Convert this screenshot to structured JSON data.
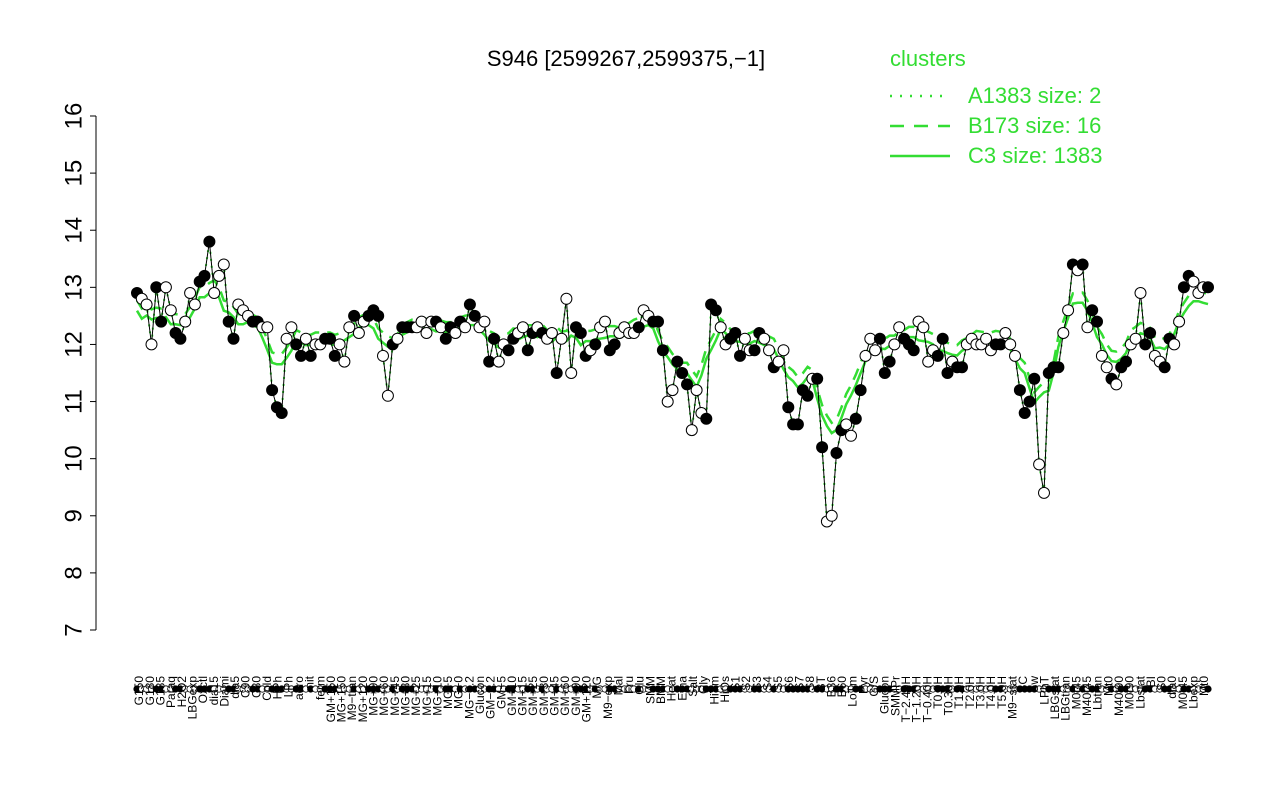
{
  "chart_data": {
    "type": "line",
    "title": "S946 [2599267,2599375,−1]",
    "ylim": [
      7,
      16
    ],
    "yticks": [
      7,
      8,
      9,
      10,
      11,
      12,
      13,
      14,
      15,
      16
    ],
    "xlabel": "",
    "ylabel": "",
    "legend": {
      "title": "clusters",
      "placement": "top-right",
      "color": "#33dd33",
      "entries": [
        {
          "label": "A1383 size: 2",
          "style": "dotted"
        },
        {
          "label": "B173 size: 16",
          "style": "dashed"
        },
        {
          "label": "C3 size: 1383",
          "style": "solid"
        }
      ]
    },
    "x_labels": [
      "G150",
      "G180",
      "G135",
      "Paraq",
      "H2O2",
      "LBGexp",
      "Oxctl",
      "dia15",
      "Diami",
      "dia5",
      "C90",
      "C30",
      "Cold",
      "HPh",
      "LPh",
      "aero",
      "nit",
      "ferm",
      "GM+150",
      "MG+150",
      "M9−tran",
      "MG+120",
      "MG+90",
      "MG+60",
      "MG+45",
      "MG+30",
      "MG+25",
      "MG+15",
      "MG+10",
      "MG+5",
      "MG+0",
      "MG−0.2",
      "Glucon",
      "GM−0.2",
      "GM+5",
      "GM+10",
      "GM+15",
      "GM+25",
      "GM+30",
      "GM+45",
      "GM+60",
      "GM+90",
      "GM+120",
      "M/G",
      "M9−exp",
      "Mal",
      "Fru",
      "Glu",
      "SMM",
      "BMM",
      "Heat",
      "Etha",
      "Salt",
      "Gly",
      "HiTm",
      "HiOs",
      "S1",
      "S2",
      "S3",
      "S4",
      "S5",
      "S6",
      "S7",
      "S8",
      "BT",
      "B36",
      "B60",
      "LoTm",
      "Pyr",
      "G/S",
      "Glucon",
      "SMMPr",
      "T−2.40H",
      "T−1.20H",
      "T−0.40H",
      "T0.0H",
      "T0.30H",
      "T1.0H",
      "T2.0H",
      "T3.0H",
      "T4.0H",
      "T5.0H",
      "M9−stat",
      "BC",
      "Sw",
      "LPhT",
      "LBGstat",
      "LBGtran",
      "M0t45",
      "M40t45",
      "Lbtran",
      "Mt0",
      "M40t90",
      "M0t90",
      "Lbstat",
      "BI",
      "S0",
      "dia0",
      "M0t45",
      "Lbexp",
      "Mt0"
    ],
    "series": [
      {
        "name": "A1383 size: 2",
        "style": "dotted",
        "values": []
      },
      {
        "name": "B173 size: 16",
        "style": "dashed",
        "values": []
      },
      {
        "name": "C3 size: 1383",
        "style": "solid",
        "values": []
      }
    ],
    "points": [
      {
        "x": 1,
        "y": 12.9,
        "filled": true
      },
      {
        "x": 2,
        "y": 12.8,
        "filled": false
      },
      {
        "x": 3,
        "y": 12.7,
        "filled": false
      },
      {
        "x": 4,
        "y": 12.0,
        "filled": false
      },
      {
        "x": 5,
        "y": 13.0,
        "filled": true
      },
      {
        "x": 6,
        "y": 12.4,
        "filled": true
      },
      {
        "x": 7,
        "y": 13.0,
        "filled": false
      },
      {
        "x": 8,
        "y": 12.6,
        "filled": false
      },
      {
        "x": 9,
        "y": 12.2,
        "filled": true
      },
      {
        "x": 10,
        "y": 12.1,
        "filled": true
      },
      {
        "x": 11,
        "y": 12.4,
        "filled": false
      },
      {
        "x": 12,
        "y": 12.9,
        "filled": false
      },
      {
        "x": 13,
        "y": 12.7,
        "filled": false
      },
      {
        "x": 14,
        "y": 13.1,
        "filled": true
      },
      {
        "x": 15,
        "y": 13.2,
        "filled": true
      },
      {
        "x": 16,
        "y": 13.8,
        "filled": true
      },
      {
        "x": 17,
        "y": 12.9,
        "filled": false
      },
      {
        "x": 18,
        "y": 13.2,
        "filled": false
      },
      {
        "x": 19,
        "y": 13.4,
        "filled": false
      },
      {
        "x": 20,
        "y": 12.4,
        "filled": true
      },
      {
        "x": 21,
        "y": 12.1,
        "filled": true
      },
      {
        "x": 22,
        "y": 12.7,
        "filled": false
      },
      {
        "x": 23,
        "y": 12.6,
        "filled": false
      },
      {
        "x": 24,
        "y": 12.5,
        "filled": false
      },
      {
        "x": 25,
        "y": 12.4,
        "filled": true
      },
      {
        "x": 26,
        "y": 12.4,
        "filled": true
      },
      {
        "x": 27,
        "y": 12.3,
        "filled": false
      },
      {
        "x": 28,
        "y": 12.3,
        "filled": false
      },
      {
        "x": 29,
        "y": 11.2,
        "filled": true
      },
      {
        "x": 30,
        "y": 10.9,
        "filled": true
      },
      {
        "x": 31,
        "y": 10.8,
        "filled": true
      },
      {
        "x": 32,
        "y": 12.1,
        "filled": false
      },
      {
        "x": 33,
        "y": 12.3,
        "filled": false
      },
      {
        "x": 34,
        "y": 12.0,
        "filled": true
      },
      {
        "x": 35,
        "y": 11.8,
        "filled": true
      },
      {
        "x": 36,
        "y": 12.1,
        "filled": false
      },
      {
        "x": 37,
        "y": 11.8,
        "filled": true
      },
      {
        "x": 38,
        "y": 12.0,
        "filled": false
      },
      {
        "x": 39,
        "y": 12.0,
        "filled": false
      },
      {
        "x": 40,
        "y": 12.1,
        "filled": true
      },
      {
        "x": 41,
        "y": 12.1,
        "filled": true
      },
      {
        "x": 42,
        "y": 11.8,
        "filled": true
      },
      {
        "x": 43,
        "y": 12.0,
        "filled": false
      },
      {
        "x": 44,
        "y": 11.7,
        "filled": false
      },
      {
        "x": 45,
        "y": 12.3,
        "filled": false
      },
      {
        "x": 46,
        "y": 12.5,
        "filled": true
      },
      {
        "x": 47,
        "y": 12.2,
        "filled": false
      },
      {
        "x": 48,
        "y": 12.4,
        "filled": false
      },
      {
        "x": 49,
        "y": 12.5,
        "filled": true
      },
      {
        "x": 50,
        "y": 12.6,
        "filled": true
      },
      {
        "x": 51,
        "y": 12.5,
        "filled": true
      },
      {
        "x": 52,
        "y": 11.8,
        "filled": false
      },
      {
        "x": 53,
        "y": 11.1,
        "filled": false
      },
      {
        "x": 54,
        "y": 12.0,
        "filled": true
      },
      {
        "x": 55,
        "y": 12.1,
        "filled": false
      },
      {
        "x": 56,
        "y": 12.3,
        "filled": true
      },
      {
        "x": 57,
        "y": 12.3,
        "filled": true
      },
      {
        "x": 58,
        "y": 12.3,
        "filled": true
      },
      {
        "x": 59,
        "y": 12.3,
        "filled": false
      },
      {
        "x": 60,
        "y": 12.4,
        "filled": false
      },
      {
        "x": 61,
        "y": 12.2,
        "filled": false
      },
      {
        "x": 62,
        "y": 12.4,
        "filled": false
      },
      {
        "x": 63,
        "y": 12.4,
        "filled": true
      },
      {
        "x": 64,
        "y": 12.3,
        "filled": false
      },
      {
        "x": 65,
        "y": 12.1,
        "filled": true
      },
      {
        "x": 66,
        "y": 12.3,
        "filled": true
      },
      {
        "x": 67,
        "y": 12.2,
        "filled": false
      },
      {
        "x": 68,
        "y": 12.4,
        "filled": true
      },
      {
        "x": 69,
        "y": 12.3,
        "filled": false
      },
      {
        "x": 70,
        "y": 12.7,
        "filled": true
      },
      {
        "x": 71,
        "y": 12.5,
        "filled": true
      },
      {
        "x": 72,
        "y": 12.3,
        "filled": false
      },
      {
        "x": 73,
        "y": 12.4,
        "filled": false
      },
      {
        "x": 74,
        "y": 11.7,
        "filled": true
      },
      {
        "x": 75,
        "y": 12.1,
        "filled": true
      },
      {
        "x": 76,
        "y": 11.7,
        "filled": false
      },
      {
        "x": 77,
        "y": 12.0,
        "filled": false
      },
      {
        "x": 78,
        "y": 11.9,
        "filled": true
      },
      {
        "x": 79,
        "y": 12.1,
        "filled": true
      },
      {
        "x": 80,
        "y": 12.2,
        "filled": false
      },
      {
        "x": 81,
        "y": 12.3,
        "filled": false
      },
      {
        "x": 82,
        "y": 11.9,
        "filled": true
      },
      {
        "x": 83,
        "y": 12.2,
        "filled": true
      },
      {
        "x": 84,
        "y": 12.3,
        "filled": false
      },
      {
        "x": 85,
        "y": 12.2,
        "filled": true
      },
      {
        "x": 86,
        "y": 12.1,
        "filled": false
      },
      {
        "x": 87,
        "y": 12.2,
        "filled": false
      },
      {
        "x": 88,
        "y": 11.5,
        "filled": true
      },
      {
        "x": 89,
        "y": 12.1,
        "filled": false
      },
      {
        "x": 90,
        "y": 12.8,
        "filled": false
      },
      {
        "x": 91,
        "y": 11.5,
        "filled": false
      },
      {
        "x": 92,
        "y": 12.3,
        "filled": true
      },
      {
        "x": 93,
        "y": 12.2,
        "filled": true
      },
      {
        "x": 94,
        "y": 11.8,
        "filled": true
      },
      {
        "x": 95,
        "y": 11.9,
        "filled": false
      },
      {
        "x": 96,
        "y": 12.0,
        "filled": true
      },
      {
        "x": 97,
        "y": 12.3,
        "filled": false
      },
      {
        "x": 98,
        "y": 12.4,
        "filled": false
      },
      {
        "x": 99,
        "y": 11.9,
        "filled": true
      },
      {
        "x": 100,
        "y": 12.0,
        "filled": true
      },
      {
        "x": 101,
        "y": 12.2,
        "filled": false
      },
      {
        "x": 102,
        "y": 12.3,
        "filled": false
      },
      {
        "x": 103,
        "y": 12.2,
        "filled": false
      },
      {
        "x": 104,
        "y": 12.2,
        "filled": false
      },
      {
        "x": 105,
        "y": 12.3,
        "filled": true
      },
      {
        "x": 106,
        "y": 12.6,
        "filled": false
      },
      {
        "x": 107,
        "y": 12.5,
        "filled": false
      },
      {
        "x": 108,
        "y": 12.4,
        "filled": true
      },
      {
        "x": 109,
        "y": 12.4,
        "filled": true
      },
      {
        "x": 110,
        "y": 11.9,
        "filled": true
      },
      {
        "x": 111,
        "y": 11.0,
        "filled": false
      },
      {
        "x": 112,
        "y": 11.2,
        "filled": false
      },
      {
        "x": 113,
        "y": 11.7,
        "filled": true
      },
      {
        "x": 114,
        "y": 11.5,
        "filled": true
      },
      {
        "x": 115,
        "y": 11.3,
        "filled": true
      },
      {
        "x": 116,
        "y": 10.5,
        "filled": false
      },
      {
        "x": 117,
        "y": 11.2,
        "filled": false
      },
      {
        "x": 118,
        "y": 10.8,
        "filled": false
      },
      {
        "x": 119,
        "y": 10.7,
        "filled": true
      },
      {
        "x": 120,
        "y": 12.7,
        "filled": true
      },
      {
        "x": 121,
        "y": 12.6,
        "filled": true
      },
      {
        "x": 122,
        "y": 12.3,
        "filled": false
      },
      {
        "x": 123,
        "y": 12.0,
        "filled": false
      },
      {
        "x": 124,
        "y": 12.1,
        "filled": true
      },
      {
        "x": 125,
        "y": 12.2,
        "filled": true
      },
      {
        "x": 126,
        "y": 11.8,
        "filled": true
      },
      {
        "x": 127,
        "y": 12.1,
        "filled": false
      },
      {
        "x": 128,
        "y": 11.9,
        "filled": false
      },
      {
        "x": 129,
        "y": 11.9,
        "filled": true
      },
      {
        "x": 130,
        "y": 12.2,
        "filled": true
      },
      {
        "x": 131,
        "y": 12.1,
        "filled": false
      },
      {
        "x": 132,
        "y": 11.9,
        "filled": false
      },
      {
        "x": 133,
        "y": 11.6,
        "filled": true
      },
      {
        "x": 134,
        "y": 11.7,
        "filled": false
      },
      {
        "x": 135,
        "y": 11.9,
        "filled": false
      },
      {
        "x": 136,
        "y": 10.9,
        "filled": true
      },
      {
        "x": 137,
        "y": 10.6,
        "filled": true
      },
      {
        "x": 138,
        "y": 10.6,
        "filled": true
      },
      {
        "x": 139,
        "y": 11.2,
        "filled": true
      },
      {
        "x": 140,
        "y": 11.1,
        "filled": true
      },
      {
        "x": 141,
        "y": 11.4,
        "filled": false
      },
      {
        "x": 142,
        "y": 11.4,
        "filled": true
      },
      {
        "x": 143,
        "y": 10.2,
        "filled": true
      },
      {
        "x": 144,
        "y": 8.9,
        "filled": false
      },
      {
        "x": 145,
        "y": 9.0,
        "filled": false
      },
      {
        "x": 146,
        "y": 10.1,
        "filled": true
      },
      {
        "x": 147,
        "y": 10.5,
        "filled": true
      },
      {
        "x": 148,
        "y": 10.6,
        "filled": false
      },
      {
        "x": 149,
        "y": 10.4,
        "filled": false
      },
      {
        "x": 150,
        "y": 10.7,
        "filled": true
      },
      {
        "x": 151,
        "y": 11.2,
        "filled": true
      },
      {
        "x": 152,
        "y": 11.8,
        "filled": false
      },
      {
        "x": 153,
        "y": 12.1,
        "filled": false
      },
      {
        "x": 154,
        "y": 11.9,
        "filled": false
      },
      {
        "x": 155,
        "y": 12.1,
        "filled": true
      },
      {
        "x": 156,
        "y": 11.5,
        "filled": true
      },
      {
        "x": 157,
        "y": 11.7,
        "filled": true
      },
      {
        "x": 158,
        "y": 12.0,
        "filled": false
      },
      {
        "x": 159,
        "y": 12.3,
        "filled": false
      },
      {
        "x": 160,
        "y": 12.1,
        "filled": true
      },
      {
        "x": 161,
        "y": 12.0,
        "filled": true
      },
      {
        "x": 162,
        "y": 11.9,
        "filled": true
      },
      {
        "x": 163,
        "y": 12.4,
        "filled": false
      },
      {
        "x": 164,
        "y": 12.3,
        "filled": false
      },
      {
        "x": 165,
        "y": 11.7,
        "filled": false
      },
      {
        "x": 166,
        "y": 11.9,
        "filled": false
      },
      {
        "x": 167,
        "y": 11.8,
        "filled": true
      },
      {
        "x": 168,
        "y": 12.1,
        "filled": true
      },
      {
        "x": 169,
        "y": 11.5,
        "filled": true
      },
      {
        "x": 170,
        "y": 11.7,
        "filled": false
      },
      {
        "x": 171,
        "y": 11.6,
        "filled": true
      },
      {
        "x": 172,
        "y": 11.6,
        "filled": true
      },
      {
        "x": 173,
        "y": 12.0,
        "filled": false
      },
      {
        "x": 174,
        "y": 12.1,
        "filled": false
      },
      {
        "x": 175,
        "y": 12.0,
        "filled": false
      },
      {
        "x": 176,
        "y": 12.0,
        "filled": false
      },
      {
        "x": 177,
        "y": 12.1,
        "filled": false
      },
      {
        "x": 178,
        "y": 11.9,
        "filled": false
      },
      {
        "x": 179,
        "y": 12.0,
        "filled": true
      },
      {
        "x": 180,
        "y": 12.0,
        "filled": true
      },
      {
        "x": 181,
        "y": 12.2,
        "filled": false
      },
      {
        "x": 182,
        "y": 12.0,
        "filled": false
      },
      {
        "x": 183,
        "y": 11.8,
        "filled": false
      },
      {
        "x": 184,
        "y": 11.2,
        "filled": true
      },
      {
        "x": 185,
        "y": 10.8,
        "filled": true
      },
      {
        "x": 186,
        "y": 11.0,
        "filled": true
      },
      {
        "x": 187,
        "y": 11.4,
        "filled": true
      },
      {
        "x": 188,
        "y": 9.9,
        "filled": false
      },
      {
        "x": 189,
        "y": 9.4,
        "filled": false
      },
      {
        "x": 190,
        "y": 11.5,
        "filled": true
      },
      {
        "x": 191,
        "y": 11.6,
        "filled": true
      },
      {
        "x": 192,
        "y": 11.6,
        "filled": true
      },
      {
        "x": 193,
        "y": 12.2,
        "filled": false
      },
      {
        "x": 194,
        "y": 12.6,
        "filled": false
      },
      {
        "x": 195,
        "y": 13.4,
        "filled": true
      },
      {
        "x": 196,
        "y": 13.3,
        "filled": false
      },
      {
        "x": 197,
        "y": 13.4,
        "filled": true
      },
      {
        "x": 198,
        "y": 12.3,
        "filled": false
      },
      {
        "x": 199,
        "y": 12.6,
        "filled": true
      },
      {
        "x": 200,
        "y": 12.4,
        "filled": true
      },
      {
        "x": 201,
        "y": 11.8,
        "filled": false
      },
      {
        "x": 202,
        "y": 11.6,
        "filled": false
      },
      {
        "x": 203,
        "y": 11.4,
        "filled": true
      },
      {
        "x": 204,
        "y": 11.3,
        "filled": false
      },
      {
        "x": 205,
        "y": 11.6,
        "filled": true
      },
      {
        "x": 206,
        "y": 11.7,
        "filled": true
      },
      {
        "x": 207,
        "y": 12.0,
        "filled": false
      },
      {
        "x": 208,
        "y": 12.1,
        "filled": false
      },
      {
        "x": 209,
        "y": 12.9,
        "filled": false
      },
      {
        "x": 210,
        "y": 12.0,
        "filled": true
      },
      {
        "x": 211,
        "y": 12.2,
        "filled": true
      },
      {
        "x": 212,
        "y": 11.8,
        "filled": false
      },
      {
        "x": 213,
        "y": 11.7,
        "filled": false
      },
      {
        "x": 214,
        "y": 11.6,
        "filled": true
      },
      {
        "x": 215,
        "y": 12.1,
        "filled": true
      },
      {
        "x": 216,
        "y": 12.0,
        "filled": false
      },
      {
        "x": 217,
        "y": 12.4,
        "filled": false
      },
      {
        "x": 218,
        "y": 13.0,
        "filled": true
      },
      {
        "x": 219,
        "y": 13.2,
        "filled": true
      },
      {
        "x": 220,
        "y": 13.1,
        "filled": false
      },
      {
        "x": 221,
        "y": 12.9,
        "filled": false
      },
      {
        "x": 222,
        "y": 13.0,
        "filled": false
      },
      {
        "x": 223,
        "y": 13.0,
        "filled": true
      }
    ]
  }
}
